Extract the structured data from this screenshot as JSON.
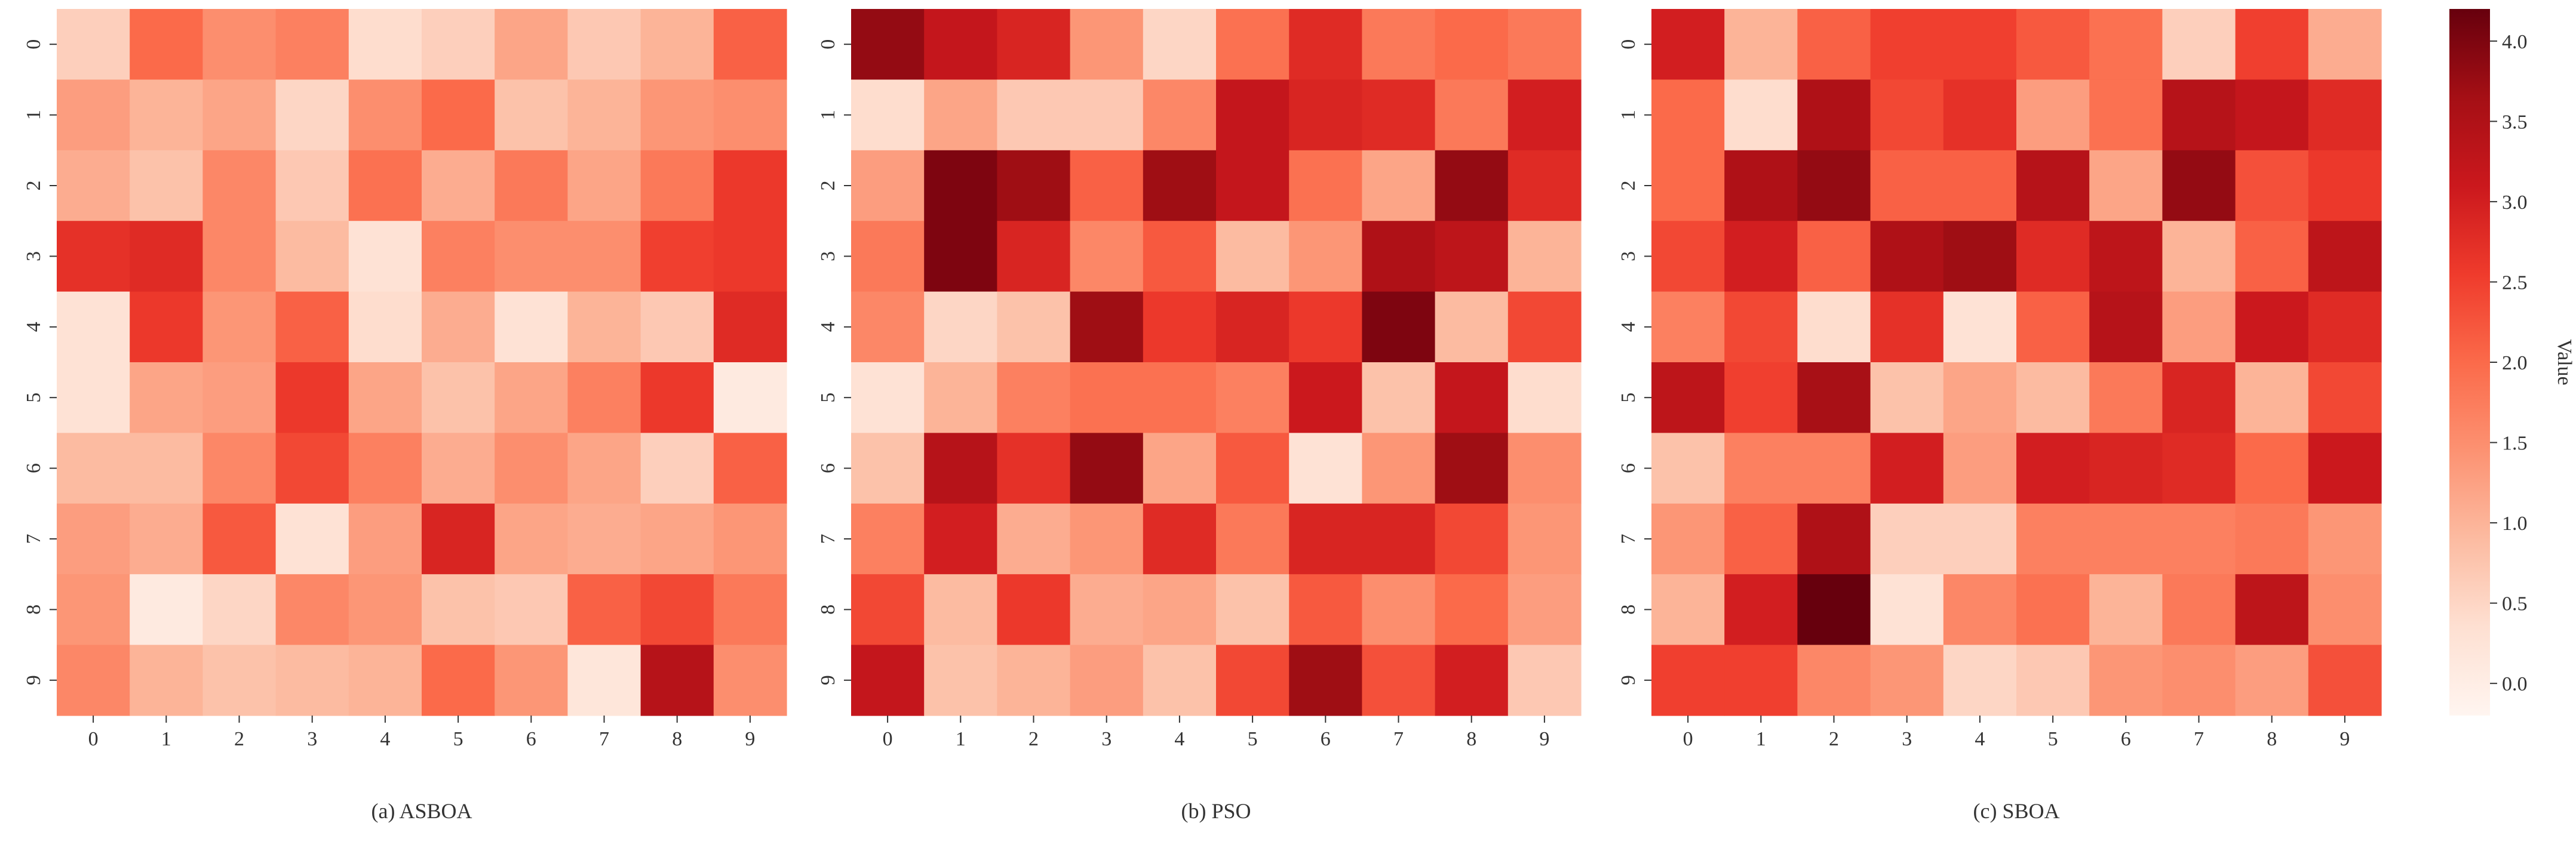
{
  "chart_data": {
    "type": "heatmap",
    "colormap": "Reds",
    "vmin": -0.2,
    "vmax": 4.2,
    "x_tick_labels": [
      "0",
      "1",
      "2",
      "3",
      "4",
      "5",
      "6",
      "7",
      "8",
      "9"
    ],
    "y_tick_labels": [
      "0",
      "1",
      "2",
      "3",
      "4",
      "5",
      "6",
      "7",
      "8",
      "9"
    ],
    "panels": [
      {
        "caption": "(a) ASBOA",
        "values": [
          [
            0.6,
            2.0,
            1.5,
            1.7,
            0.4,
            0.6,
            1.2,
            0.7,
            1.0,
            2.1
          ],
          [
            1.3,
            1.0,
            1.2,
            0.5,
            1.5,
            2.0,
            0.8,
            1.0,
            1.4,
            1.5
          ],
          [
            1.1,
            0.8,
            1.6,
            0.7,
            1.9,
            1.1,
            1.8,
            1.2,
            1.8,
            2.6
          ],
          [
            2.7,
            2.8,
            1.6,
            0.9,
            0.3,
            1.7,
            1.5,
            1.5,
            2.5,
            2.6
          ],
          [
            0.3,
            2.6,
            1.4,
            2.1,
            0.4,
            1.1,
            0.3,
            1.0,
            0.7,
            2.8
          ],
          [
            0.3,
            1.2,
            1.3,
            2.6,
            1.2,
            0.8,
            1.2,
            1.7,
            2.6,
            0.1
          ],
          [
            0.9,
            0.9,
            1.6,
            2.4,
            1.7,
            1.1,
            1.5,
            1.2,
            0.6,
            2.1
          ],
          [
            1.3,
            1.1,
            2.2,
            0.3,
            1.3,
            2.9,
            1.2,
            1.1,
            1.2,
            1.4
          ],
          [
            1.4,
            0.1,
            0.5,
            1.6,
            1.4,
            0.8,
            0.7,
            2.1,
            2.4,
            1.8
          ],
          [
            1.6,
            1.0,
            0.8,
            0.9,
            1.0,
            2.0,
            1.4,
            0.2,
            3.4,
            1.5
          ]
        ]
      },
      {
        "caption": "(b) PSO",
        "values": [
          [
            3.8,
            3.2,
            2.9,
            1.4,
            0.5,
            1.9,
            2.8,
            1.8,
            2.0,
            1.8
          ],
          [
            0.4,
            1.2,
            0.7,
            0.7,
            1.6,
            3.2,
            2.9,
            2.8,
            1.8,
            3.0
          ],
          [
            1.3,
            4.0,
            3.7,
            2.1,
            3.7,
            3.2,
            1.9,
            1.2,
            3.8,
            2.8
          ],
          [
            1.8,
            4.0,
            2.9,
            1.6,
            2.2,
            0.9,
            1.4,
            3.5,
            3.3,
            1.0
          ],
          [
            1.6,
            0.5,
            0.8,
            3.7,
            2.6,
            2.9,
            2.6,
            4.0,
            0.9,
            2.4
          ],
          [
            0.3,
            1.0,
            1.7,
            1.9,
            1.9,
            1.7,
            3.1,
            0.8,
            3.2,
            0.4
          ],
          [
            0.8,
            3.4,
            2.7,
            3.8,
            1.2,
            2.2,
            0.3,
            1.4,
            3.7,
            1.5
          ],
          [
            1.7,
            3.0,
            1.1,
            1.4,
            2.8,
            1.8,
            2.9,
            2.9,
            2.4,
            1.4
          ],
          [
            2.4,
            0.9,
            2.6,
            1.1,
            1.2,
            0.8,
            2.2,
            1.5,
            2.0,
            1.3
          ],
          [
            3.2,
            0.8,
            1.0,
            1.3,
            0.8,
            2.4,
            3.7,
            2.3,
            3.0,
            0.7
          ]
        ]
      },
      {
        "caption": "(c) SBOA",
        "values": [
          [
            3.0,
            1.0,
            2.1,
            2.5,
            2.5,
            2.2,
            1.9,
            0.6,
            2.5,
            1.1
          ],
          [
            2.0,
            0.4,
            3.5,
            2.4,
            2.7,
            1.3,
            1.9,
            3.4,
            3.2,
            2.8
          ],
          [
            2.0,
            3.5,
            3.8,
            2.1,
            2.1,
            3.4,
            1.2,
            3.8,
            2.3,
            2.6
          ],
          [
            2.4,
            3.0,
            2.1,
            3.5,
            3.7,
            2.8,
            3.3,
            1.0,
            2.1,
            3.3
          ],
          [
            1.7,
            2.4,
            0.4,
            2.7,
            0.3,
            2.1,
            3.4,
            1.3,
            3.1,
            2.8
          ],
          [
            3.3,
            2.5,
            3.6,
            0.8,
            1.2,
            0.9,
            1.8,
            2.9,
            1.0,
            2.4
          ],
          [
            0.8,
            1.7,
            1.7,
            3.0,
            1.3,
            3.0,
            2.9,
            2.8,
            2.0,
            3.1
          ],
          [
            1.4,
            2.1,
            3.5,
            0.6,
            0.6,
            1.7,
            1.7,
            1.7,
            1.8,
            1.4
          ],
          [
            1.0,
            3.0,
            4.2,
            0.3,
            1.6,
            1.9,
            1.0,
            1.8,
            3.3,
            1.5
          ],
          [
            2.5,
            2.5,
            1.6,
            1.4,
            0.5,
            0.7,
            1.4,
            1.5,
            1.3,
            2.3
          ]
        ]
      }
    ],
    "colorbar": {
      "label": "Value",
      "ticks": [
        0.0,
        0.5,
        1.0,
        1.5,
        2.0,
        2.5,
        3.0,
        3.5,
        4.0
      ],
      "tick_labels": [
        "0.0",
        "0.5",
        "1.0",
        "1.5",
        "2.0",
        "2.5",
        "3.0",
        "3.5",
        "4.0"
      ]
    }
  }
}
